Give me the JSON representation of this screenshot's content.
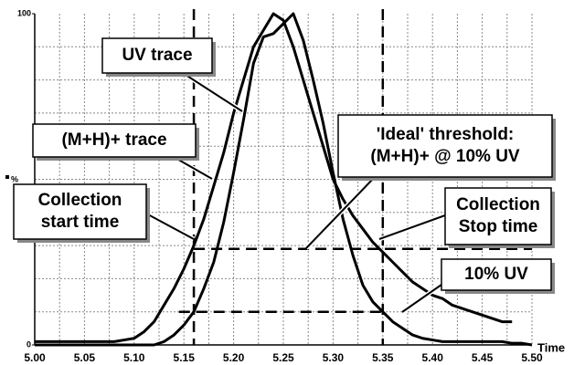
{
  "chart_data": {
    "type": "line",
    "x_label": "Time",
    "y_label": "%",
    "x": [
      5,
      5.01,
      5.02,
      5.03,
      5.04,
      5.05,
      5.06,
      5.07,
      5.08,
      5.09,
      5.1,
      5.11,
      5.12,
      5.13,
      5.14,
      5.15,
      5.16,
      5.17,
      5.18,
      5.19,
      5.2,
      5.21,
      5.22,
      5.23,
      5.24,
      5.25,
      5.26,
      5.27,
      5.28,
      5.29,
      5.3,
      5.31,
      5.32,
      5.33,
      5.34,
      5.35,
      5.36,
      5.37,
      5.38,
      5.39,
      5.4,
      5.41,
      5.42,
      5.43,
      5.44,
      5.45,
      5.46,
      5.47,
      5.48,
      5.49,
      5.5
    ],
    "series": [
      {
        "name": "(M+H)+ trace",
        "color": "#000000",
        "values": [
          1,
          1,
          1,
          1,
          1,
          1,
          1,
          1,
          1,
          1.5,
          2,
          4,
          7,
          12,
          17,
          23,
          30,
          38,
          48,
          58,
          70,
          80,
          90,
          95,
          100,
          98,
          90,
          80,
          70,
          60,
          50,
          44,
          39,
          35,
          31,
          28,
          25,
          22,
          19,
          17,
          15,
          14,
          12,
          11,
          10,
          9,
          8,
          7,
          7,
          null,
          null
        ]
      },
      {
        "name": "UV trace",
        "color": "#000000",
        "values": [
          0,
          0,
          0,
          0,
          0,
          0,
          0,
          0,
          0,
          0,
          0,
          0,
          0,
          1,
          3,
          6,
          10,
          17,
          25,
          37,
          52,
          68,
          85,
          93,
          94,
          97,
          100,
          92,
          80,
          67,
          52,
          38,
          27,
          18,
          13,
          10,
          7,
          5,
          3,
          2,
          1.5,
          1,
          1,
          1,
          1,
          1,
          1,
          1,
          0.5,
          0.5,
          0
        ]
      }
    ],
    "xlim": [
      5,
      5.5
    ],
    "xticks": [
      {
        "value": 5,
        "label": "5.00"
      },
      5.05,
      {
        "value": 5.1,
        "label": "5.10"
      },
      5.15,
      {
        "value": 5.2,
        "label": "5.20"
      },
      5.25,
      {
        "value": 5.3,
        "label": "5.30"
      },
      5.35,
      {
        "value": 5.4,
        "label": "5.40"
      },
      5.45,
      {
        "value": 5.5,
        "label": "5.50"
      }
    ],
    "xminor": [
      5.025,
      5.075,
      5.125,
      5.175,
      5.225,
      5.275,
      5.325,
      5.375,
      5.425,
      5.475
    ],
    "ylim": [
      0,
      100
    ],
    "yticks": [
      0,
      100
    ],
    "yminor": [
      10,
      20,
      30,
      40,
      50,
      60,
      70,
      80,
      90
    ],
    "grid": true,
    "vlines": [
      5.16,
      5.35
    ],
    "hlines": [
      {
        "value": 10,
        "from": 5.145,
        "to": 5.35
      },
      {
        "value": 29,
        "from": 5.16,
        "to": 5.5
      }
    ],
    "annotations": [
      {
        "lines": [
          "Collection",
          "start time"
        ]
      },
      {
        "lines": [
          "'Ideal' threshold:",
          "(M+H)+ @ 10% UV"
        ]
      },
      {
        "lines": [
          "Collection",
          "Stop time"
        ]
      },
      {
        "lines": [
          "10% UV"
        ]
      }
    ]
  }
}
